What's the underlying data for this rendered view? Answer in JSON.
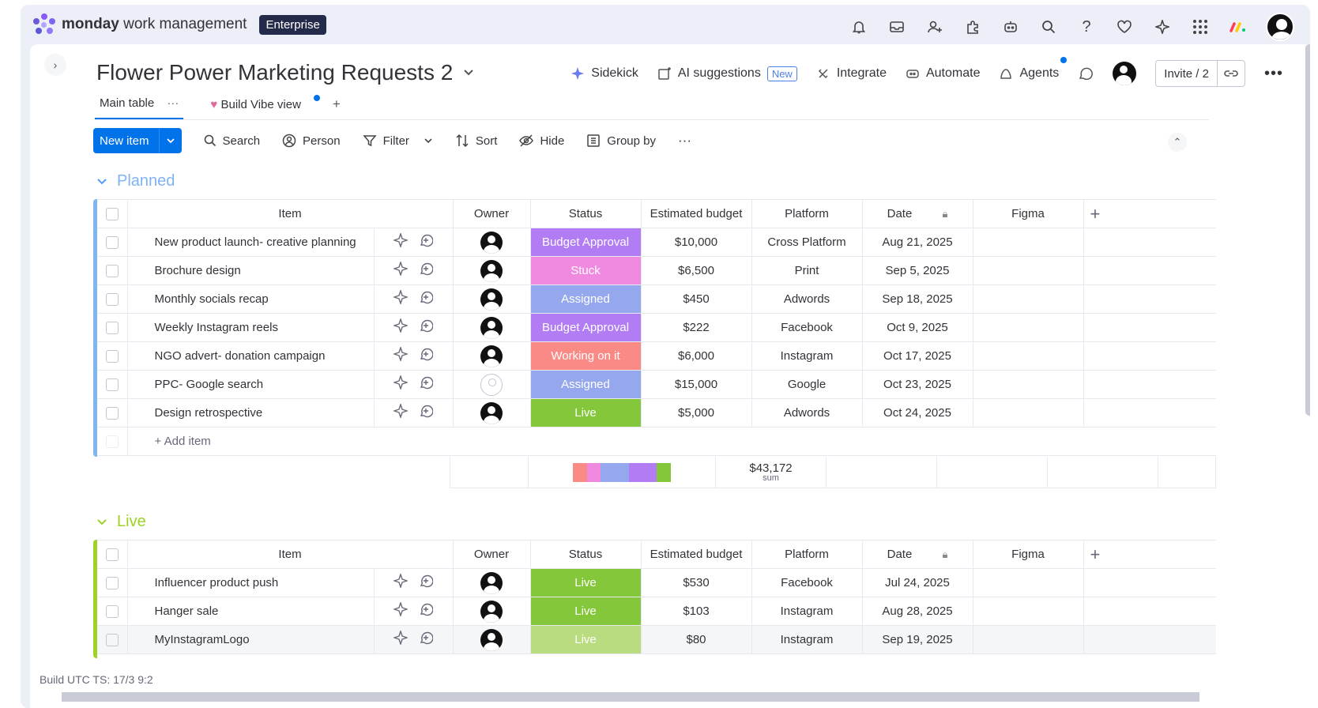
{
  "app": {
    "brand_bold": "monday",
    "brand_rest": " work management",
    "plan": "Enterprise"
  },
  "board": {
    "title": "Flower Power Marketing Requests 2"
  },
  "header_actions": {
    "sidekick": "Sidekick",
    "ai": "AI suggestions",
    "ai_badge": "New",
    "integrate": "Integrate",
    "automate": "Automate",
    "agents": "Agents",
    "invite": "Invite / 2"
  },
  "tabs": {
    "main": "Main table",
    "vibe": "Build Vibe view",
    "add": "+"
  },
  "toolbar": {
    "new_item": "New item",
    "search": "Search",
    "person": "Person",
    "filter": "Filter",
    "sort": "Sort",
    "hide": "Hide",
    "group_by": "Group by"
  },
  "columns": {
    "item": "Item",
    "owner": "Owner",
    "status": "Status",
    "budget": "Estimated budget",
    "platform": "Platform",
    "date": "Date",
    "figma": "Figma"
  },
  "colors": {
    "planned": "#579bfc",
    "live": "#9cd326",
    "budget_approval": "#a25ddc",
    "stuck": "#ff7bd0",
    "assigned": "#7e9ff0",
    "working": "#fd7a71",
    "live_status": "#9cd326"
  },
  "groups": {
    "planned": {
      "title": "Planned",
      "rows": [
        {
          "item": "New product launch- creative planning",
          "status": "Budget Approval",
          "status_color": "#b17cf4",
          "budget": "$10,000",
          "platform": "Cross Platform",
          "date": "Aug 21, 2025",
          "owner": "filled"
        },
        {
          "item": "Brochure design",
          "status": "Stuck",
          "status_color": "#f08ae0",
          "budget": "$6,500",
          "platform": "Print",
          "date": "Sep 5, 2025",
          "owner": "filled"
        },
        {
          "item": "Monthly socials recap",
          "status": "Assigned",
          "status_color": "#95a8ee",
          "budget": "$450",
          "platform": "Adwords",
          "date": "Sep 18, 2025",
          "owner": "filled"
        },
        {
          "item": "Weekly Instagram reels",
          "status": "Budget Approval",
          "status_color": "#b17cf4",
          "budget": "$222",
          "platform": "Facebook",
          "date": "Oct 9, 2025",
          "owner": "filled"
        },
        {
          "item": "NGO advert- donation campaign",
          "status": "Working on it",
          "status_color": "#f98a86",
          "budget": "$6,000",
          "platform": "Instagram",
          "date": "Oct 17, 2025",
          "owner": "filled"
        },
        {
          "item": "PPC- Google search",
          "status": "Assigned",
          "status_color": "#95a8ee",
          "budget": "$15,000",
          "platform": "Google",
          "date": "Oct 23, 2025",
          "owner": "empty"
        },
        {
          "item": "Design retrospective",
          "status": "Live",
          "status_color": "#84c73b",
          "budget": "$5,000",
          "platform": "Adwords",
          "date": "Oct 24, 2025",
          "owner": "filled"
        }
      ],
      "add_item": "+ Add item",
      "sum_value": "$43,172",
      "sum_label": "sum"
    },
    "live": {
      "title": "Live",
      "rows": [
        {
          "item": "Influencer product push",
          "status": "Live",
          "status_color": "#84c73b",
          "budget": "$530",
          "platform": "Facebook",
          "date": "Jul 24, 2025",
          "owner": "filled"
        },
        {
          "item": "Hanger sale",
          "status": "Live",
          "status_color": "#84c73b",
          "budget": "$103",
          "platform": "Instagram",
          "date": "Aug 28, 2025",
          "owner": "filled"
        },
        {
          "item": "MyInstagramLogo",
          "status": "Live",
          "status_color": "#b9dc80",
          "budget": "$80",
          "platform": "Instagram",
          "date": "Sep 19, 2025",
          "owner": "filled"
        }
      ]
    }
  },
  "footer": {
    "build": "Build UTC TS: 17/3 9:2"
  }
}
